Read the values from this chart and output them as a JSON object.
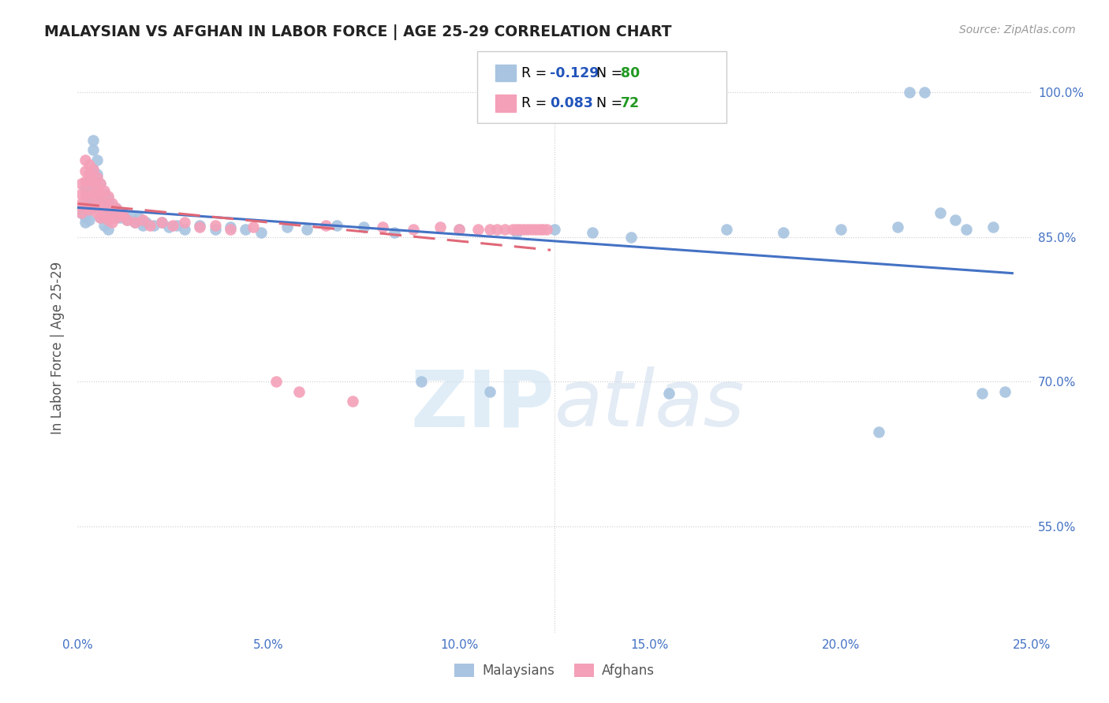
{
  "title": "MALAYSIAN VS AFGHAN IN LABOR FORCE | AGE 25-29 CORRELATION CHART",
  "source": "Source: ZipAtlas.com",
  "ylabel": "In Labor Force | Age 25-29",
  "blue_color": "#a8c4e0",
  "pink_color": "#f4a0b8",
  "blue_line_color": "#4472c4",
  "pink_line_color": "#e06878",
  "r_text_color": "#2255bb",
  "n_text_color": "#229922",
  "legend_blue_r": "-0.129",
  "legend_blue_n": "80",
  "legend_pink_r": "0.083",
  "legend_pink_n": "72",
  "xlim": [
    0.0,
    0.25
  ],
  "ylim": [
    0.44,
    1.03
  ],
  "yticks": [
    0.55,
    0.7,
    0.85,
    1.0
  ],
  "ytick_labels": [
    "55.0%",
    "70.0%",
    "85.0%",
    "100.0%"
  ],
  "xticks": [
    0.0,
    0.05,
    0.1,
    0.15,
    0.2,
    0.25
  ],
  "xtick_labels": [
    "0.0%",
    "5.0%",
    "10.0%",
    "15.0%",
    "20.0%",
    "25.0%"
  ],
  "grid_color": "#cccccc",
  "blue_x": [
    0.001,
    0.001,
    0.002,
    0.002,
    0.002,
    0.002,
    0.003,
    0.003,
    0.003,
    0.003,
    0.003,
    0.004,
    0.004,
    0.004,
    0.004,
    0.004,
    0.004,
    0.005,
    0.005,
    0.005,
    0.005,
    0.006,
    0.006,
    0.006,
    0.006,
    0.007,
    0.007,
    0.007,
    0.007,
    0.008,
    0.008,
    0.008,
    0.008,
    0.009,
    0.009,
    0.01,
    0.011,
    0.012,
    0.013,
    0.014,
    0.015,
    0.016,
    0.017,
    0.018,
    0.02,
    0.022,
    0.024,
    0.026,
    0.028,
    0.032,
    0.036,
    0.04,
    0.044,
    0.048,
    0.055,
    0.06,
    0.068,
    0.075,
    0.083,
    0.09,
    0.1,
    0.108,
    0.115,
    0.125,
    0.135,
    0.145,
    0.155,
    0.17,
    0.185,
    0.2,
    0.21,
    0.215,
    0.218,
    0.222,
    0.226,
    0.23,
    0.233,
    0.237,
    0.24,
    0.243
  ],
  "blue_y": [
    0.88,
    0.875,
    0.9,
    0.885,
    0.87,
    0.865,
    0.91,
    0.895,
    0.885,
    0.878,
    0.868,
    0.95,
    0.94,
    0.92,
    0.905,
    0.892,
    0.882,
    0.93,
    0.915,
    0.895,
    0.88,
    0.905,
    0.892,
    0.88,
    0.87,
    0.895,
    0.882,
    0.87,
    0.862,
    0.89,
    0.878,
    0.868,
    0.858,
    0.882,
    0.87,
    0.88,
    0.87,
    0.875,
    0.868,
    0.872,
    0.865,
    0.87,
    0.862,
    0.865,
    0.862,
    0.865,
    0.86,
    0.862,
    0.858,
    0.862,
    0.858,
    0.86,
    0.858,
    0.855,
    0.86,
    0.858,
    0.862,
    0.86,
    0.855,
    0.7,
    0.858,
    0.69,
    0.855,
    0.858,
    0.855,
    0.85,
    0.688,
    0.858,
    0.855,
    0.858,
    0.648,
    0.86,
    1.0,
    1.0,
    0.875,
    0.868,
    0.858,
    0.688,
    0.86,
    0.69
  ],
  "pink_x": [
    0.001,
    0.001,
    0.001,
    0.001,
    0.002,
    0.002,
    0.002,
    0.002,
    0.002,
    0.003,
    0.003,
    0.003,
    0.003,
    0.003,
    0.004,
    0.004,
    0.004,
    0.004,
    0.005,
    0.005,
    0.005,
    0.005,
    0.006,
    0.006,
    0.006,
    0.006,
    0.007,
    0.007,
    0.007,
    0.008,
    0.008,
    0.008,
    0.009,
    0.009,
    0.009,
    0.01,
    0.01,
    0.011,
    0.012,
    0.013,
    0.015,
    0.017,
    0.019,
    0.022,
    0.025,
    0.028,
    0.032,
    0.036,
    0.04,
    0.046,
    0.052,
    0.058,
    0.065,
    0.072,
    0.08,
    0.088,
    0.095,
    0.1,
    0.105,
    0.108,
    0.11,
    0.112,
    0.114,
    0.115,
    0.116,
    0.117,
    0.118,
    0.119,
    0.12,
    0.121,
    0.122,
    0.123
  ],
  "pink_y": [
    0.905,
    0.895,
    0.885,
    0.875,
    0.93,
    0.918,
    0.908,
    0.895,
    0.882,
    0.925,
    0.915,
    0.905,
    0.892,
    0.878,
    0.92,
    0.908,
    0.895,
    0.882,
    0.912,
    0.9,
    0.888,
    0.875,
    0.905,
    0.895,
    0.882,
    0.87,
    0.898,
    0.885,
    0.872,
    0.892,
    0.88,
    0.868,
    0.885,
    0.875,
    0.865,
    0.88,
    0.87,
    0.875,
    0.872,
    0.868,
    0.865,
    0.868,
    0.862,
    0.865,
    0.862,
    0.865,
    0.86,
    0.862,
    0.858,
    0.86,
    0.7,
    0.69,
    0.862,
    0.68,
    0.86,
    0.858,
    0.86,
    0.858,
    0.858,
    0.858,
    0.858,
    0.858,
    0.858,
    0.858,
    0.858,
    0.858,
    0.858,
    0.858,
    0.858,
    0.858,
    0.858,
    0.858
  ]
}
